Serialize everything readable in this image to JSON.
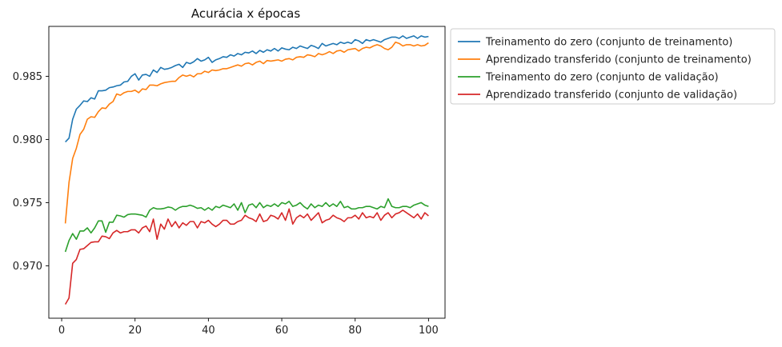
{
  "chart_data": {
    "type": "line",
    "title": "Acurácia x épocas",
    "xlabel": "",
    "ylabel": "",
    "xlim": [
      -3.5,
      104.5
    ],
    "ylim": [
      0.96585,
      0.98895
    ],
    "x_ticks": [
      0,
      20,
      40,
      60,
      80,
      100
    ],
    "y_ticks": [
      0.97,
      0.975,
      0.98,
      0.985
    ],
    "y_tick_labels": [
      "0.970",
      "0.975",
      "0.980",
      "0.985"
    ],
    "x_tick_labels": [
      "0",
      "20",
      "40",
      "60",
      "80",
      "100"
    ],
    "grid": false,
    "legend_position": "outside-top-right",
    "x": [
      1,
      2,
      3,
      4,
      5,
      6,
      7,
      8,
      9,
      10,
      11,
      12,
      13,
      14,
      15,
      16,
      17,
      18,
      19,
      20,
      21,
      22,
      23,
      24,
      25,
      26,
      27,
      28,
      29,
      30,
      31,
      32,
      33,
      34,
      35,
      36,
      37,
      38,
      39,
      40,
      41,
      42,
      43,
      44,
      45,
      46,
      47,
      48,
      49,
      50,
      51,
      52,
      53,
      54,
      55,
      56,
      57,
      58,
      59,
      60,
      61,
      62,
      63,
      64,
      65,
      66,
      67,
      68,
      69,
      70,
      71,
      72,
      73,
      74,
      75,
      76,
      77,
      78,
      79,
      80,
      81,
      82,
      83,
      84,
      85,
      86,
      87,
      88,
      89,
      90,
      91,
      92,
      93,
      94,
      95,
      96,
      97,
      98,
      99,
      100
    ],
    "series": [
      {
        "name": "Treinamento do zero (conjunto de treinamento)",
        "color": "#1f77b4",
        "values": [
          0.9798,
          0.9801,
          0.9816,
          0.9824,
          0.9827,
          0.98305,
          0.983,
          0.9833,
          0.9832,
          0.98385,
          0.98385,
          0.9839,
          0.9841,
          0.98415,
          0.98425,
          0.9843,
          0.98455,
          0.9846,
          0.985,
          0.9852,
          0.9847,
          0.9851,
          0.98515,
          0.985,
          0.9855,
          0.9853,
          0.9857,
          0.98555,
          0.9856,
          0.9857,
          0.98585,
          0.98595,
          0.9857,
          0.9861,
          0.986,
          0.98615,
          0.9864,
          0.9862,
          0.9863,
          0.9865,
          0.9861,
          0.9863,
          0.9864,
          0.98655,
          0.9865,
          0.9867,
          0.9866,
          0.9868,
          0.9867,
          0.9869,
          0.98685,
          0.987,
          0.9868,
          0.98705,
          0.9869,
          0.9871,
          0.987,
          0.9872,
          0.987,
          0.98725,
          0.98715,
          0.9871,
          0.9873,
          0.9872,
          0.9874,
          0.9873,
          0.9872,
          0.98745,
          0.98735,
          0.9872,
          0.9876,
          0.9874,
          0.9875,
          0.9876,
          0.9875,
          0.9877,
          0.9876,
          0.9877,
          0.9876,
          0.9879,
          0.9878,
          0.9876,
          0.9879,
          0.9878,
          0.9879,
          0.9878,
          0.9877,
          0.9879,
          0.988,
          0.9881,
          0.9881,
          0.988,
          0.9882,
          0.988,
          0.9881,
          0.9882,
          0.988,
          0.9882,
          0.9881,
          0.98815
        ]
      },
      {
        "name": "Aprendizado transferido (conjunto de treinamento)",
        "color": "#ff7f0e",
        "values": [
          0.97335,
          0.9766,
          0.9785,
          0.9793,
          0.9804,
          0.9808,
          0.9816,
          0.9818,
          0.98175,
          0.9822,
          0.9825,
          0.98245,
          0.9828,
          0.983,
          0.9836,
          0.9835,
          0.9837,
          0.9838,
          0.9838,
          0.9839,
          0.9837,
          0.984,
          0.98395,
          0.9843,
          0.9843,
          0.98425,
          0.9844,
          0.9845,
          0.98455,
          0.9846,
          0.9846,
          0.9849,
          0.9851,
          0.985,
          0.9851,
          0.98495,
          0.9852,
          0.9852,
          0.9854,
          0.9853,
          0.9855,
          0.98545,
          0.9855,
          0.9856,
          0.9856,
          0.9857,
          0.9858,
          0.9859,
          0.9858,
          0.986,
          0.98605,
          0.9859,
          0.9861,
          0.9862,
          0.986,
          0.98625,
          0.9862,
          0.98625,
          0.9863,
          0.9862,
          0.98635,
          0.9864,
          0.9863,
          0.9865,
          0.98655,
          0.9865,
          0.9867,
          0.98665,
          0.98655,
          0.9868,
          0.9867,
          0.9868,
          0.98695,
          0.9868,
          0.987,
          0.98705,
          0.9869,
          0.9871,
          0.98715,
          0.9872,
          0.987,
          0.9872,
          0.9873,
          0.98725,
          0.9874,
          0.9875,
          0.9874,
          0.9872,
          0.9871,
          0.9873,
          0.9877,
          0.9876,
          0.9874,
          0.9875,
          0.9875,
          0.9874,
          0.9875,
          0.9874,
          0.98745,
          0.98765
        ]
      },
      {
        "name": "Treinamento do zero (conjunto de validação)",
        "color": "#2ca02c",
        "values": [
          0.9711,
          0.972,
          0.97255,
          0.9721,
          0.97275,
          0.97275,
          0.973,
          0.9726,
          0.973,
          0.97355,
          0.97355,
          0.97265,
          0.97345,
          0.97345,
          0.974,
          0.97395,
          0.97385,
          0.97405,
          0.9741,
          0.9741,
          0.97405,
          0.974,
          0.97385,
          0.9744,
          0.9746,
          0.9745,
          0.9745,
          0.97455,
          0.97465,
          0.9746,
          0.9744,
          0.9746,
          0.9747,
          0.9747,
          0.9748,
          0.9747,
          0.97455,
          0.9746,
          0.9744,
          0.9746,
          0.9744,
          0.9747,
          0.9746,
          0.9748,
          0.9747,
          0.9746,
          0.9749,
          0.9744,
          0.975,
          0.9742,
          0.9748,
          0.9749,
          0.9746,
          0.975,
          0.9746,
          0.9748,
          0.9747,
          0.9749,
          0.9747,
          0.975,
          0.9749,
          0.9751,
          0.9747,
          0.9748,
          0.975,
          0.9747,
          0.9745,
          0.9749,
          0.9746,
          0.9748,
          0.9747,
          0.975,
          0.9747,
          0.9749,
          0.9747,
          0.9751,
          0.9746,
          0.9747,
          0.9745,
          0.9745,
          0.9746,
          0.9746,
          0.9747,
          0.9747,
          0.9746,
          0.9745,
          0.9747,
          0.9746,
          0.9753,
          0.9747,
          0.9746,
          0.9746,
          0.9747,
          0.9747,
          0.9746,
          0.9748,
          0.9749,
          0.975,
          0.9748,
          0.9747
        ]
      },
      {
        "name": "Aprendizado transferido (conjunto de validação)",
        "color": "#d62728",
        "values": [
          0.96695,
          0.96745,
          0.9702,
          0.9705,
          0.9713,
          0.97135,
          0.9716,
          0.97185,
          0.9719,
          0.9719,
          0.97235,
          0.9723,
          0.97215,
          0.9726,
          0.9728,
          0.9726,
          0.9727,
          0.9727,
          0.97285,
          0.97285,
          0.9726,
          0.973,
          0.97315,
          0.9727,
          0.9737,
          0.9721,
          0.9733,
          0.9729,
          0.9737,
          0.9731,
          0.9735,
          0.973,
          0.9734,
          0.9732,
          0.9735,
          0.9735,
          0.973,
          0.9735,
          0.9734,
          0.9736,
          0.9733,
          0.9731,
          0.9733,
          0.9736,
          0.9736,
          0.9733,
          0.9733,
          0.9735,
          0.9736,
          0.974,
          0.9738,
          0.9737,
          0.9735,
          0.9741,
          0.9735,
          0.9736,
          0.974,
          0.9739,
          0.9737,
          0.9742,
          0.9736,
          0.9745,
          0.9733,
          0.9738,
          0.974,
          0.9738,
          0.9741,
          0.9736,
          0.9739,
          0.9742,
          0.9734,
          0.9736,
          0.9737,
          0.974,
          0.9738,
          0.9737,
          0.9735,
          0.9738,
          0.9738,
          0.974,
          0.9737,
          0.9742,
          0.9738,
          0.9739,
          0.9738,
          0.9742,
          0.9736,
          0.974,
          0.9742,
          0.9738,
          0.9741,
          0.9742,
          0.9744,
          0.9742,
          0.974,
          0.9738,
          0.9741,
          0.9737,
          0.9742,
          0.97395
        ]
      }
    ]
  }
}
